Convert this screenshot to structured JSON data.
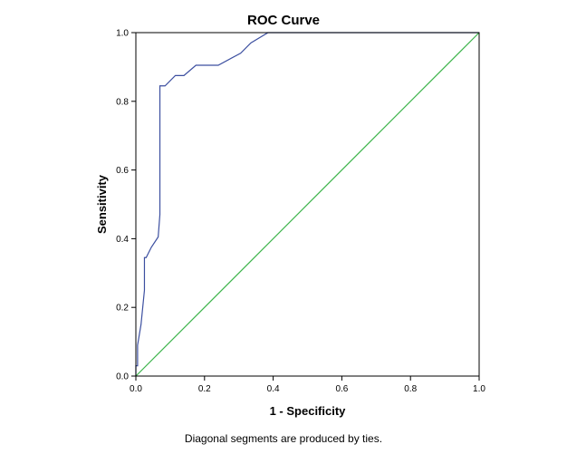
{
  "chart_data": {
    "type": "line",
    "title": "ROC Curve",
    "xlabel": "1 - Specificity",
    "ylabel": "Sensitivity",
    "footnote": "Diagonal segments are produced by ties.",
    "xlim": [
      0.0,
      1.0
    ],
    "ylim": [
      0.0,
      1.0
    ],
    "xticks": [
      "0.0",
      "0.2",
      "0.4",
      "0.6",
      "0.8",
      "1.0"
    ],
    "yticks": [
      "0.0",
      "0.2",
      "0.4",
      "0.6",
      "0.8",
      "1.0"
    ],
    "grid": false,
    "series": [
      {
        "color": "#3c4fa0",
        "x": [
          0.0,
          0.0,
          0.005,
          0.005,
          0.015,
          0.025,
          0.025,
          0.03,
          0.045,
          0.065,
          0.07,
          0.07,
          0.085,
          0.115,
          0.14,
          0.175,
          0.24,
          0.305,
          0.335,
          0.385,
          1.0
        ],
        "y": [
          0.0,
          0.03,
          0.03,
          0.09,
          0.15,
          0.25,
          0.345,
          0.345,
          0.375,
          0.405,
          0.47,
          0.845,
          0.845,
          0.875,
          0.875,
          0.905,
          0.905,
          0.94,
          0.97,
          1.0,
          1.0
        ]
      },
      {
        "color": "#3cb44b",
        "x": [
          0.0,
          1.0
        ],
        "y": [
          0.0,
          1.0
        ]
      }
    ]
  }
}
